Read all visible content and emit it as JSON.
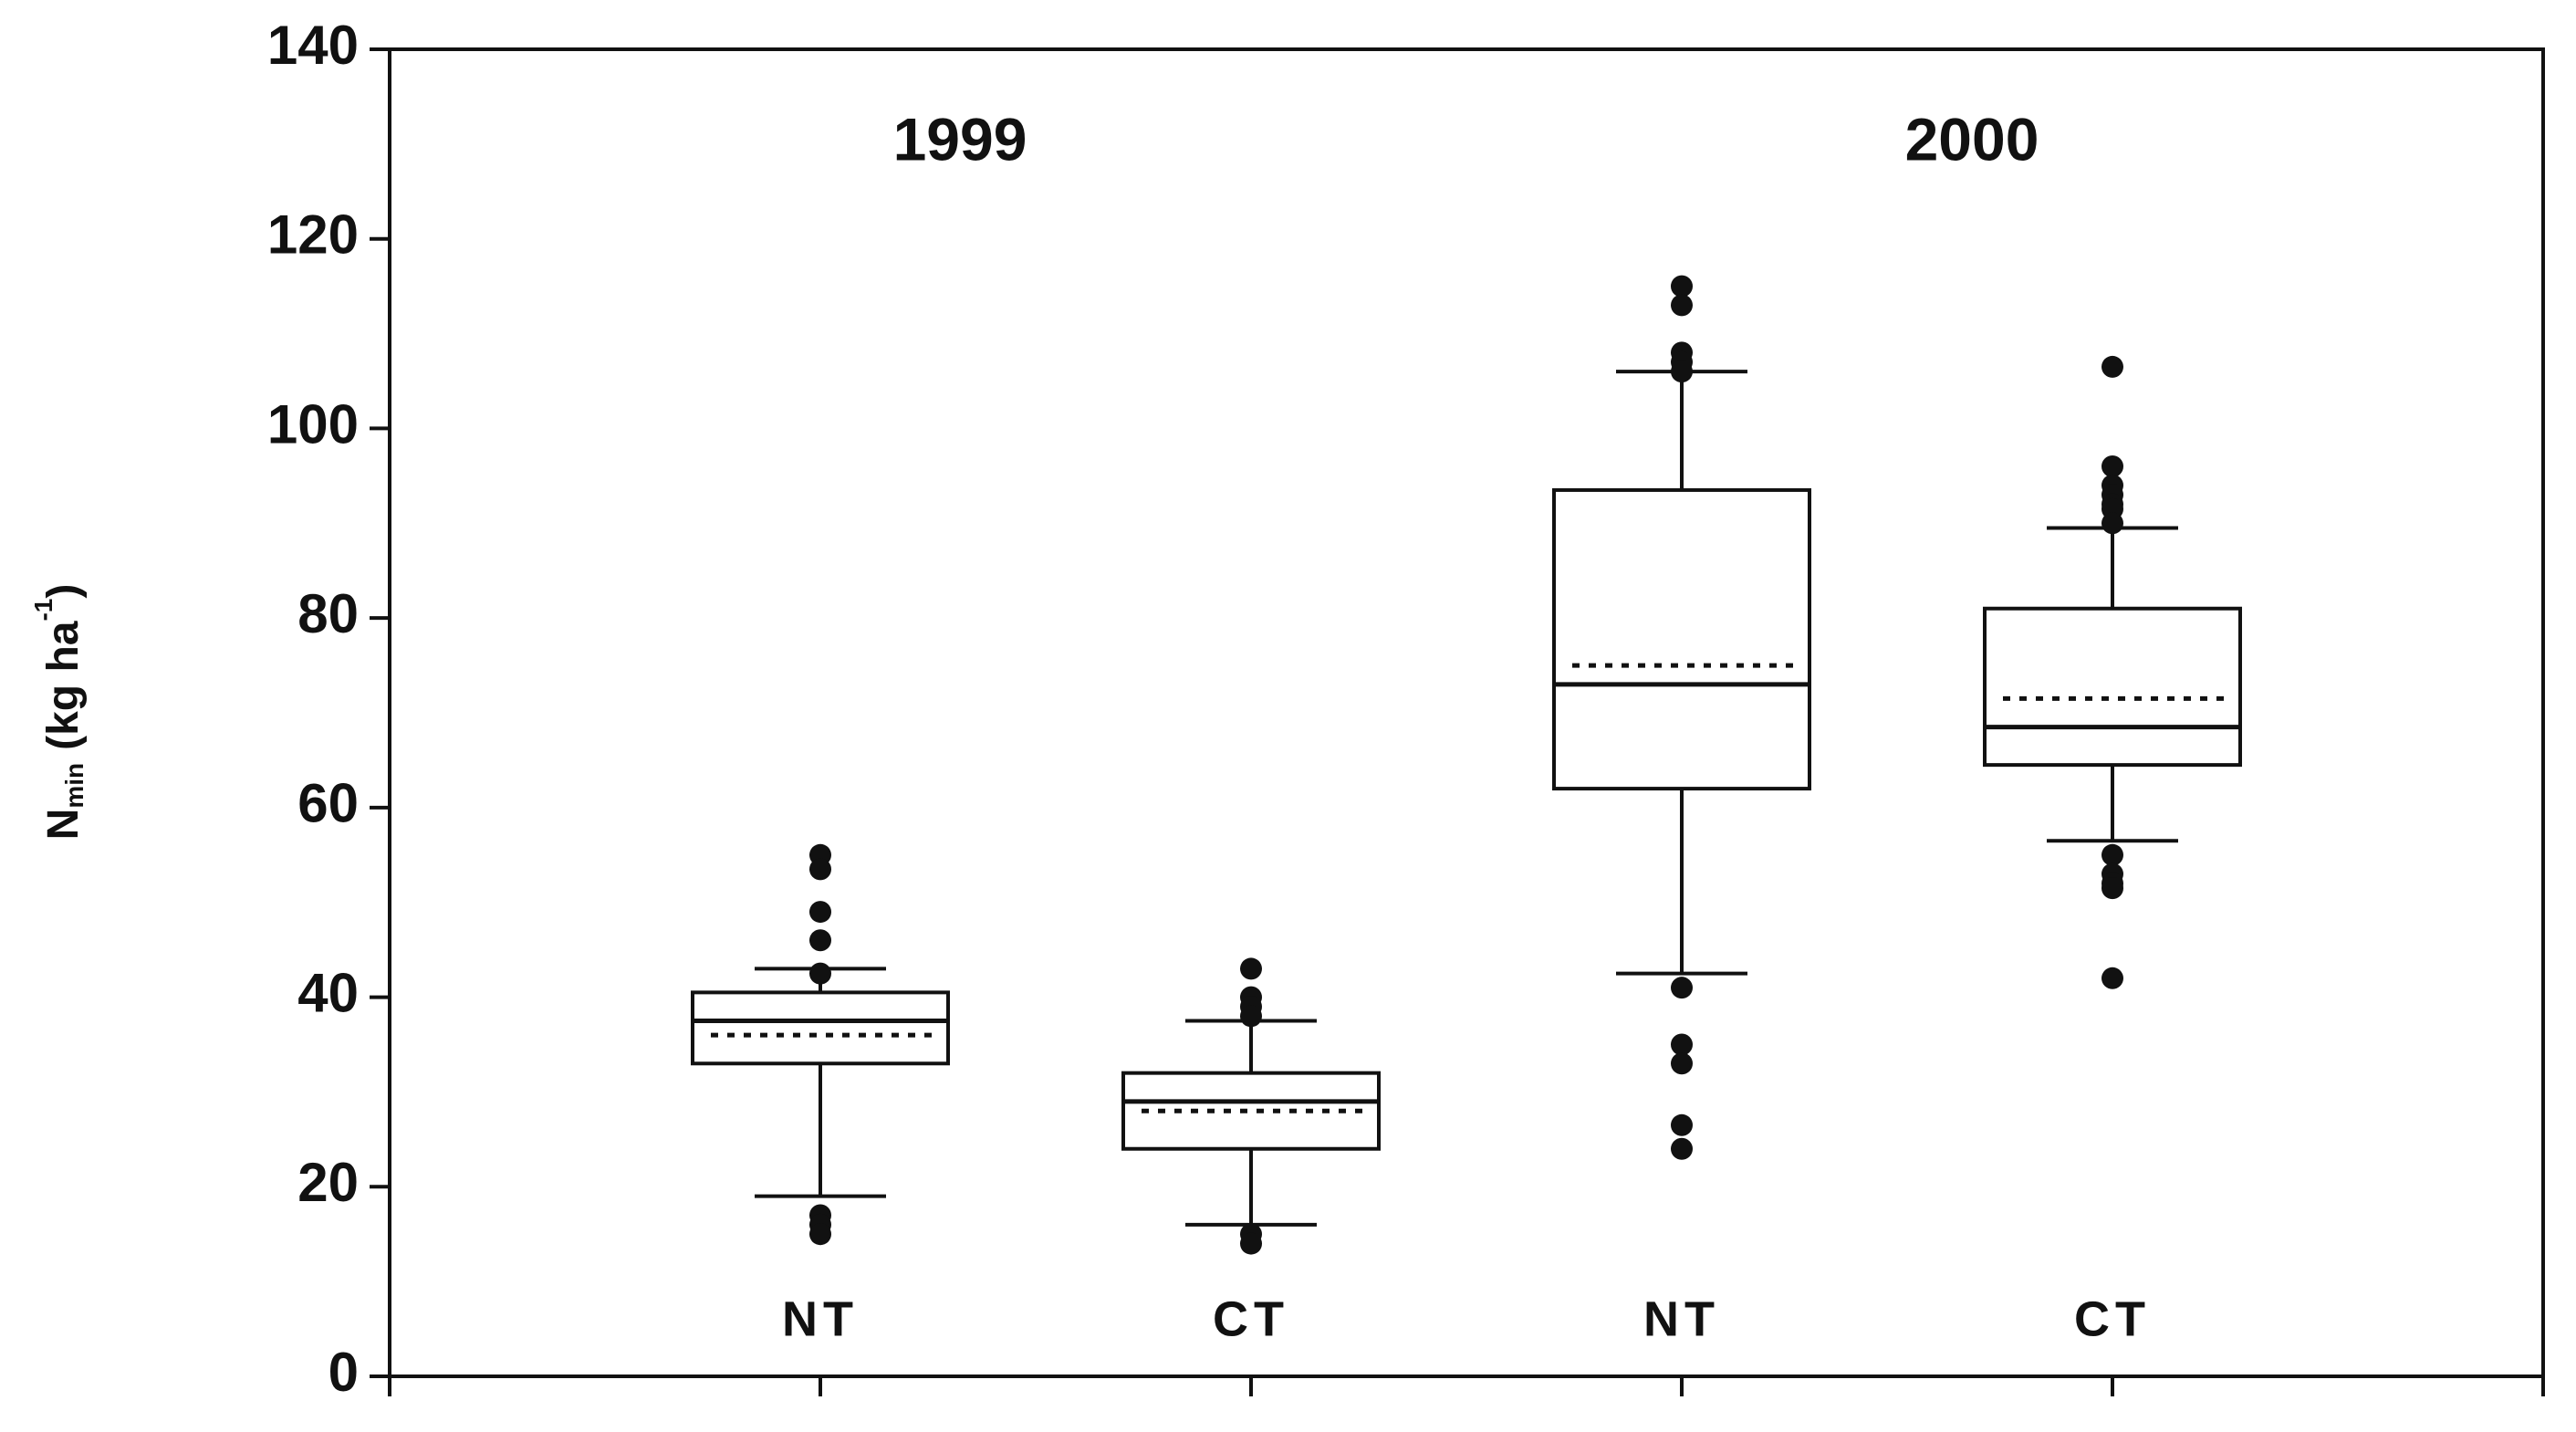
{
  "chart_data": {
    "type": "box",
    "annotations": [
      "1999",
      "2000"
    ],
    "y_label": {
      "base": "N",
      "subscript": "min",
      "units": "(kg ha",
      "superscript": "-1",
      "close": ")"
    },
    "categories": [
      "NT",
      "CT",
      "NT",
      "CT"
    ],
    "boxes": [
      {
        "whisker_low": 19,
        "q1": 33,
        "median": 37.5,
        "mean": 36,
        "q3": 40.5,
        "whisker_high": 43,
        "outliers": [
          55,
          53.5,
          49,
          46,
          42.5,
          17,
          16,
          15
        ]
      },
      {
        "whisker_low": 16,
        "q1": 24,
        "median": 29,
        "mean": 28,
        "q3": 32,
        "whisker_high": 37.5,
        "outliers": [
          43,
          40,
          39,
          38,
          15,
          14
        ]
      },
      {
        "whisker_low": 42.5,
        "q1": 62,
        "median": 73,
        "mean": 75,
        "q3": 93.5,
        "whisker_high": 106,
        "outliers": [
          115,
          113,
          108,
          107,
          106,
          41,
          35,
          33,
          26.5,
          24
        ]
      },
      {
        "whisker_low": 56.5,
        "q1": 64.5,
        "median": 68.5,
        "mean": 71.5,
        "q3": 81,
        "whisker_high": 89.5,
        "outliers": [
          106.5,
          96,
          94,
          93,
          92,
          91.5,
          90,
          55,
          53,
          52,
          51.5,
          42
        ]
      }
    ],
    "ylim": [
      0,
      140
    ],
    "yticks": [
      0,
      20,
      40,
      60,
      80,
      100,
      120,
      140
    ]
  }
}
